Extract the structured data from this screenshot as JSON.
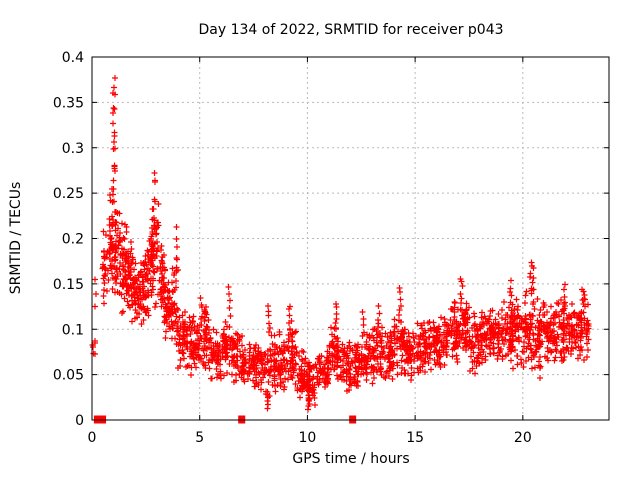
{
  "figure": {
    "background": "#ffffff"
  },
  "chart_data": {
    "type": "scatter",
    "title": "Day 134 of 2022, SRMTID for receiver p043",
    "xlabel": "GPS time / hours",
    "ylabel": "SRMTID / TECUs",
    "xlim": [
      0,
      24
    ],
    "ylim": [
      0,
      0.4
    ],
    "xticks": [
      0,
      5,
      10,
      15,
      20
    ],
    "xtick_labels": [
      "0",
      "5",
      "10",
      "15",
      "20"
    ],
    "yticks": [
      0,
      0.05,
      0.1,
      0.15,
      0.2,
      0.25,
      0.3,
      0.35,
      0.4
    ],
    "ytick_labels": [
      "0",
      "0.05",
      "0.1",
      "0.15",
      "0.2",
      "0.25",
      "0.3",
      "0.35",
      "0.4"
    ],
    "grid": true,
    "legend": "none",
    "marker": "plus",
    "marker_color": "#ff0000",
    "grid_color": "#b9b9b9",
    "axis_color": "#000000",
    "description": "Dense scatter of slant-TEC mid-scale fluctuation (SRMTID) vs GPS time; high values 0.1-0.37 TECU before 04:00, low band 0.02-0.10 between 05:00 and 12:00 with dips to 0.013 near 08:10 and 10:00, slowly rising band 0.05-0.15 after 13:00, local maxima near 20:25 (0.173); data end near 23:00",
    "scatter_bands": [
      [
        0.02,
        0.45,
        0.06,
        0.1,
        6
      ],
      [
        0.45,
        0.75,
        0.12,
        0.22,
        26
      ],
      [
        0.75,
        1.0,
        0.14,
        0.26,
        40
      ],
      [
        1.0,
        1.3,
        0.13,
        0.235,
        46
      ],
      [
        1.3,
        1.6,
        0.11,
        0.22,
        46
      ],
      [
        1.6,
        1.9,
        0.1,
        0.21,
        46
      ],
      [
        1.9,
        2.2,
        0.095,
        0.185,
        40
      ],
      [
        2.2,
        2.5,
        0.1,
        0.185,
        38
      ],
      [
        2.5,
        2.8,
        0.11,
        0.22,
        40
      ],
      [
        2.8,
        3.1,
        0.12,
        0.245,
        46
      ],
      [
        3.1,
        3.4,
        0.1,
        0.21,
        40
      ],
      [
        3.4,
        3.7,
        0.08,
        0.17,
        36
      ],
      [
        3.7,
        4.0,
        0.07,
        0.19,
        36
      ],
      [
        4.0,
        4.3,
        0.05,
        0.13,
        34
      ],
      [
        4.3,
        4.7,
        0.045,
        0.125,
        42
      ],
      [
        4.7,
        5.0,
        0.045,
        0.11,
        36
      ],
      [
        5.0,
        5.5,
        0.045,
        0.13,
        50
      ],
      [
        5.5,
        6.0,
        0.04,
        0.1,
        50
      ],
      [
        6.0,
        6.5,
        0.045,
        0.115,
        50
      ],
      [
        6.5,
        7.0,
        0.04,
        0.1,
        48
      ],
      [
        7.0,
        7.5,
        0.035,
        0.085,
        48
      ],
      [
        7.5,
        8.0,
        0.03,
        0.095,
        48
      ],
      [
        8.0,
        8.5,
        0.02,
        0.1,
        52
      ],
      [
        8.5,
        9.0,
        0.03,
        0.1,
        50
      ],
      [
        9.0,
        9.5,
        0.03,
        0.11,
        52
      ],
      [
        9.5,
        10.0,
        0.02,
        0.08,
        48
      ],
      [
        10.0,
        10.5,
        0.012,
        0.07,
        46
      ],
      [
        10.5,
        11.0,
        0.03,
        0.08,
        48
      ],
      [
        11.0,
        11.5,
        0.035,
        0.11,
        52
      ],
      [
        11.5,
        12.0,
        0.03,
        0.09,
        48
      ],
      [
        12.0,
        12.5,
        0.03,
        0.09,
        48
      ],
      [
        12.5,
        13.0,
        0.035,
        0.1,
        50
      ],
      [
        13.0,
        13.5,
        0.04,
        0.11,
        52
      ],
      [
        13.5,
        14.0,
        0.04,
        0.1,
        50
      ],
      [
        14.0,
        14.5,
        0.045,
        0.12,
        52
      ],
      [
        14.5,
        15.0,
        0.04,
        0.105,
        50
      ],
      [
        15.0,
        15.5,
        0.05,
        0.11,
        50
      ],
      [
        15.5,
        16.0,
        0.05,
        0.115,
        50
      ],
      [
        16.0,
        16.5,
        0.05,
        0.12,
        52
      ],
      [
        16.5,
        17.0,
        0.055,
        0.135,
        52
      ],
      [
        17.0,
        17.5,
        0.06,
        0.14,
        52
      ],
      [
        17.5,
        18.0,
        0.05,
        0.12,
        50
      ],
      [
        18.0,
        18.5,
        0.055,
        0.13,
        52
      ],
      [
        18.5,
        19.0,
        0.06,
        0.13,
        52
      ],
      [
        19.0,
        19.5,
        0.06,
        0.135,
        52
      ],
      [
        19.5,
        20.0,
        0.05,
        0.14,
        52
      ],
      [
        20.0,
        20.5,
        0.05,
        0.15,
        55
      ],
      [
        20.5,
        21.0,
        0.045,
        0.14,
        52
      ],
      [
        21.0,
        21.5,
        0.06,
        0.13,
        52
      ],
      [
        21.5,
        22.0,
        0.06,
        0.14,
        52
      ],
      [
        22.0,
        22.5,
        0.06,
        0.13,
        52
      ],
      [
        22.5,
        23.05,
        0.06,
        0.145,
        55
      ]
    ],
    "spike_columns": [
      [
        0.15,
        0.1,
        0.125,
        0.155,
        3
      ],
      [
        1.02,
        0.1,
        0.275,
        0.372,
        16
      ],
      [
        1.0,
        0.06,
        0.24,
        0.275,
        5
      ],
      [
        2.88,
        0.12,
        0.21,
        0.272,
        9
      ],
      [
        3.95,
        0.08,
        0.17,
        0.21,
        5
      ],
      [
        5.1,
        0.08,
        0.11,
        0.135,
        5
      ],
      [
        6.38,
        0.06,
        0.115,
        0.145,
        5
      ],
      [
        8.22,
        0.06,
        0.095,
        0.125,
        6
      ],
      [
        8.15,
        0.04,
        0.013,
        0.03,
        6
      ],
      [
        9.2,
        0.08,
        0.1,
        0.125,
        6
      ],
      [
        10.05,
        0.05,
        0.013,
        0.035,
        7
      ],
      [
        11.3,
        0.07,
        0.1,
        0.13,
        6
      ],
      [
        12.6,
        0.07,
        0.09,
        0.12,
        5
      ],
      [
        13.3,
        0.07,
        0.1,
        0.125,
        5
      ],
      [
        14.3,
        0.09,
        0.11,
        0.145,
        7
      ],
      [
        17.15,
        0.08,
        0.13,
        0.157,
        6
      ],
      [
        19.45,
        0.07,
        0.13,
        0.152,
        5
      ],
      [
        20.42,
        0.12,
        0.14,
        0.173,
        10
      ],
      [
        21.95,
        0.07,
        0.125,
        0.148,
        5
      ],
      [
        22.8,
        0.09,
        0.12,
        0.146,
        5
      ]
    ],
    "zero_marker_hours": [
      0.25,
      0.33,
      0.41,
      0.49,
      6.95,
      12.1
    ]
  }
}
